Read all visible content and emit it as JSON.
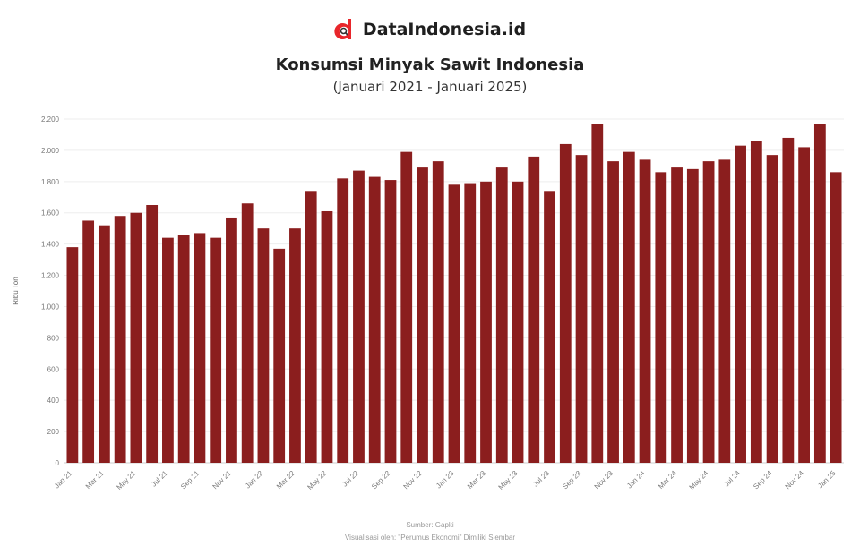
{
  "brand": {
    "name": "DataIndonesia.id",
    "icon": "dataindonesia-logo-icon",
    "logo_color": "#e8262b"
  },
  "title": "Konsumsi Minyak Sawit Indonesia",
  "subtitle": "(Januari 2021 - Januari 2025)",
  "footer": {
    "source": "Sumber: Gapki",
    "credit": "Visualisasi oleh: \"Perumus Ekonomi\" Dimiliki Slembar"
  },
  "chart_data": {
    "type": "bar",
    "color": "#8b1e1e",
    "ylabel": "Ribu Ton",
    "ylim": [
      0,
      2200
    ],
    "yticks": [
      0,
      200,
      400,
      600,
      800,
      1000,
      1200,
      1400,
      1600,
      1800,
      2000,
      2200
    ],
    "ytick_labels": [
      "0",
      "200",
      "400",
      "600",
      "800",
      "1.000",
      "1.200",
      "1.400",
      "1.600",
      "1.800",
      "2.000",
      "2.200"
    ],
    "grid": true,
    "categories": [
      "Jan 21",
      "Feb 21",
      "Mar 21",
      "Apr 21",
      "May 21",
      "Jun 21",
      "Jul 21",
      "Aug 21",
      "Sep 21",
      "Oct 21",
      "Nov 21",
      "Dec 21",
      "Jan 22",
      "Feb 22",
      "Mar 22",
      "Apr 22",
      "May 22",
      "Jun 22",
      "Jul 22",
      "Aug 22",
      "Sep 22",
      "Oct 22",
      "Nov 22",
      "Dec 22",
      "Jan 23",
      "Feb 23",
      "Mar 23",
      "Apr 23",
      "May 23",
      "Jun 23",
      "Jul 23",
      "Aug 23",
      "Sep 23",
      "Oct 23",
      "Nov 23",
      "Dec 23",
      "Jan 24",
      "Feb 24",
      "Mar 24",
      "Apr 24",
      "May 24",
      "Jun 24",
      "Jul 24",
      "Aug 24",
      "Sep 24",
      "Oct 24",
      "Nov 24",
      "Dec 24",
      "Jan 25"
    ],
    "xtick_labels": [
      "Jan 21",
      "",
      "Mar 21",
      "",
      "May 21",
      "",
      "Jul 21",
      "",
      "Sep 21",
      "",
      "Nov 21",
      "",
      "Jan 22",
      "",
      "Mar 22",
      "",
      "May 22",
      "",
      "Jul 22",
      "",
      "Sep 22",
      "",
      "Nov 22",
      "",
      "Jan 23",
      "",
      "Mar 23",
      "",
      "May 23",
      "",
      "Jul 23",
      "",
      "Sep 23",
      "",
      "Nov 23",
      "",
      "Jan 24",
      "",
      "Mar 24",
      "",
      "May 24",
      "",
      "Jul 24",
      "",
      "Sep 24",
      "",
      "Nov 24",
      "",
      "Jan 25"
    ],
    "values": [
      1380,
      1550,
      1520,
      1580,
      1600,
      1650,
      1440,
      1460,
      1470,
      1440,
      1570,
      1660,
      1500,
      1370,
      1500,
      1740,
      1610,
      1820,
      1870,
      1830,
      1810,
      1990,
      1890,
      1930,
      1780,
      1790,
      1800,
      1890,
      1800,
      1960,
      1740,
      2040,
      1970,
      2170,
      1930,
      1990,
      1940,
      1860,
      1890,
      1880,
      1930,
      1940,
      2030,
      2060,
      1970,
      2080,
      2020,
      2170,
      1860
    ]
  }
}
